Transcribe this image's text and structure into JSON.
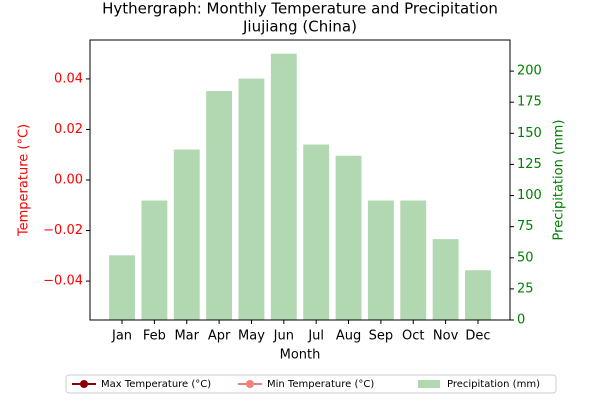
{
  "chart_data": {
    "type": "bar",
    "title": "Hythergraph: Monthly Temperature and Precipitation",
    "subtitle": "Jiujiang (China)",
    "x_label": "Month",
    "y_label": "Temperature (°C)",
    "y2_label": "Precipitation (mm)",
    "categories": [
      "Jan",
      "Feb",
      "Mar",
      "Apr",
      "May",
      "Jun",
      "Jul",
      "Aug",
      "Sep",
      "Oct",
      "Nov",
      "Dec"
    ],
    "series": [
      {
        "name": "Max Temperature (°C)",
        "type": "line",
        "color": "#8b0000",
        "values": [
          null,
          null,
          null,
          null,
          null,
          null,
          null,
          null,
          null,
          null,
          null,
          null
        ]
      },
      {
        "name": "Min Temperature (°C)",
        "type": "line",
        "color": "#f08080",
        "values": [
          null,
          null,
          null,
          null,
          null,
          null,
          null,
          null,
          null,
          null,
          null,
          null
        ]
      },
      {
        "name": "Precipitation (mm)",
        "type": "bar",
        "axis": "y2",
        "color": "#b2d8b2",
        "values": [
          52,
          96,
          137,
          184,
          194,
          214,
          141,
          132,
          96,
          96,
          65,
          40
        ]
      }
    ],
    "ylim": [
      -0.0554,
      0.0554
    ],
    "yticks": [
      {
        "value": -0.04,
        "label": "−0.04"
      },
      {
        "value": -0.02,
        "label": "−0.02"
      },
      {
        "value": 0,
        "label": "0.00"
      },
      0.02,
      0.04
    ],
    "y2lim": [
      0,
      225
    ],
    "y2ticks": [
      0,
      25,
      50,
      75,
      100,
      125,
      150,
      175,
      200
    ],
    "y_color": "#ff0000",
    "y2_color": "#008000",
    "legend": "bottom"
  }
}
